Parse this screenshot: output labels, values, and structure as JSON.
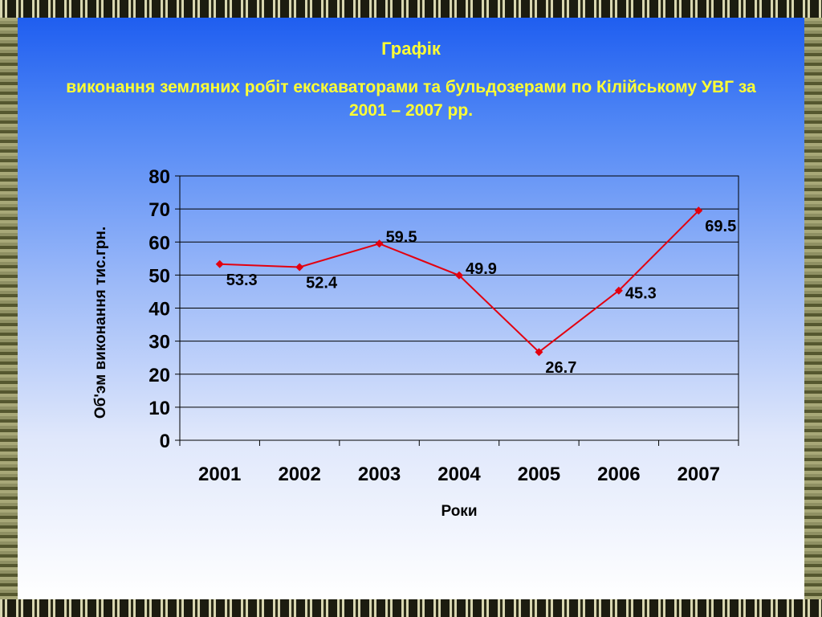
{
  "chart_data": {
    "type": "line",
    "title": "Графік",
    "subtitle": "виконання земляних робіт екскаваторами та бульдозерами по Кілійському УВГ за 2001 – 2007 рр.",
    "xlabel": "Роки",
    "ylabel": "Об'эм виконання тис.грн.",
    "categories": [
      "2001",
      "2002",
      "2003",
      "2004",
      "2005",
      "2006",
      "2007"
    ],
    "series": [
      {
        "values": [
          53.3,
          52.4,
          59.5,
          49.9,
          26.7,
          45.3,
          69.5
        ]
      }
    ],
    "data_labels": [
      "53.3",
      "52.4",
      "59.5",
      "49.9",
      "26.7",
      "45.3",
      "69.5"
    ],
    "ylim": [
      0,
      80
    ],
    "yticks": [
      "0",
      "10",
      "20",
      "30",
      "40",
      "50",
      "60",
      "70",
      "80"
    ],
    "grid": true,
    "line_color": "#e3000f",
    "marker": "diamond"
  }
}
